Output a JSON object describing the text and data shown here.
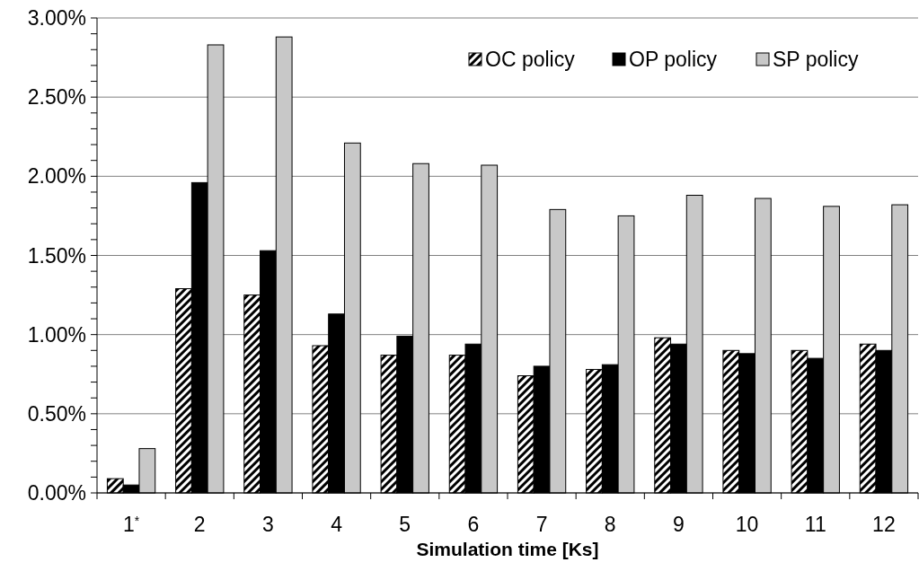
{
  "chart_data": {
    "type": "bar",
    "xlabel": "Simulation time [Ks]",
    "categories": [
      "1$^{*}$",
      "2",
      "3",
      "4",
      "5",
      "6",
      "7",
      "8",
      "9",
      "10",
      "11",
      "12"
    ],
    "series": [
      {
        "name": "OC policy",
        "color": "#000000",
        "values": [
          0.09,
          1.29,
          1.25,
          0.93,
          0.87,
          0.87,
          0.74,
          0.78,
          0.98,
          0.9,
          0.9,
          0.94
        ]
      },
      {
        "name": "OP policy",
        "color": "#000000",
        "values": [
          0.05,
          1.96,
          1.53,
          1.13,
          0.99,
          0.94,
          0.8,
          0.81,
          0.94,
          0.88,
          0.85,
          0.9
        ]
      },
      {
        "name": "SP policy",
        "color": "#c8c8c8",
        "values": [
          0.28,
          2.83,
          2.88,
          2.21,
          2.08,
          2.07,
          1.79,
          1.75,
          1.88,
          1.86,
          1.81,
          1.82
        ]
      }
    ],
    "ylim": [
      0,
      3
    ],
    "yticks": [
      {
        "value": 0,
        "label": "0.00%"
      },
      {
        "value": 0.1,
        "label": null
      },
      {
        "value": 0.2,
        "label": null
      },
      {
        "value": 0.3,
        "label": null
      },
      {
        "value": 0.4,
        "label": null
      },
      {
        "value": 0.5,
        "label": "0.50%"
      },
      {
        "value": 0.6,
        "label": null
      },
      {
        "value": 0.7,
        "label": null
      },
      {
        "value": 0.8,
        "label": null
      },
      {
        "value": 0.9,
        "label": null
      },
      {
        "value": 1,
        "label": "1.00%"
      },
      {
        "value": 1.1,
        "label": null
      },
      {
        "value": 1.2,
        "label": null
      },
      {
        "value": 1.3,
        "label": null
      },
      {
        "value": 1.4,
        "label": null
      },
      {
        "value": 1.5,
        "label": "1.50%"
      },
      {
        "value": 1.6,
        "label": null
      },
      {
        "value": 1.7,
        "label": null
      },
      {
        "value": 1.8,
        "label": null
      },
      {
        "value": 1.9,
        "label": null
      },
      {
        "value": 2,
        "label": "2.00%"
      },
      {
        "value": 2.1,
        "label": null
      },
      {
        "value": 2.2,
        "label": null
      },
      {
        "value": 2.3,
        "label": null
      },
      {
        "value": 2.4,
        "label": null
      },
      {
        "value": 2.5,
        "label": "2.50%"
      },
      {
        "value": 2.6,
        "label": null
      },
      {
        "value": 2.7,
        "label": null
      },
      {
        "value": 2.8,
        "label": null
      },
      {
        "value": 2.9,
        "label": null
      },
      {
        "value": 3,
        "label": "3.00%"
      }
    ],
    "grid": "y",
    "legend": "top right"
  }
}
